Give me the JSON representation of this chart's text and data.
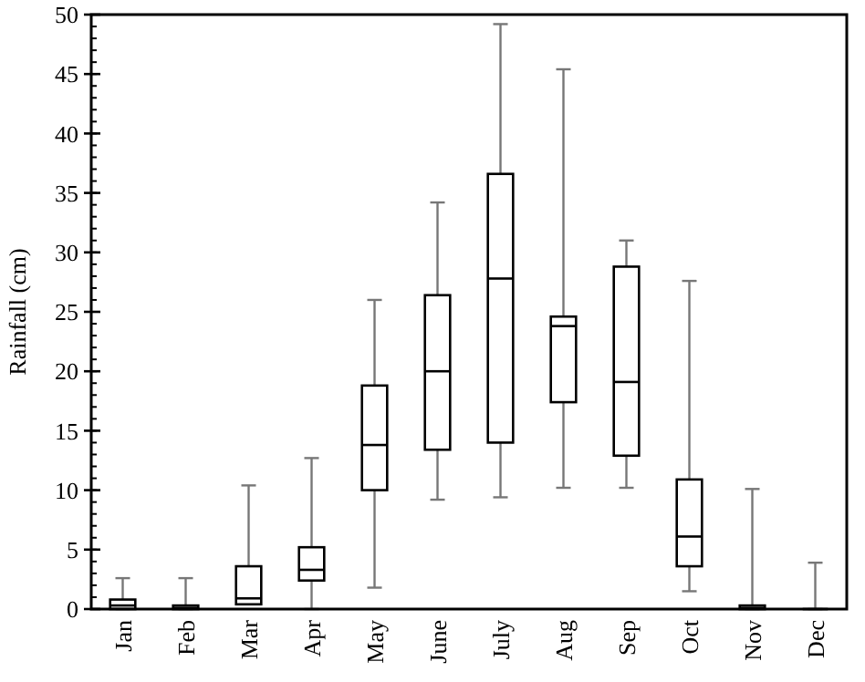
{
  "chart_data": {
    "type": "box",
    "ylabel": "Rainfall (cm)",
    "categories": [
      "Jan",
      "Feb",
      "Mar",
      "Apr",
      "May",
      "June",
      "July",
      "Aug",
      "Sep",
      "Oct",
      "Nov",
      "Dec"
    ],
    "boxes": [
      {
        "low": 0,
        "q1": 0,
        "median": 0.3,
        "q3": 0.8,
        "high": 2.6
      },
      {
        "low": 0,
        "q1": 0,
        "median": 0.1,
        "q3": 0.3,
        "high": 2.6
      },
      {
        "low": 0.4,
        "q1": 0.4,
        "median": 0.9,
        "q3": 3.6,
        "high": 10.4
      },
      {
        "low": 0,
        "q1": 2.4,
        "median": 3.3,
        "q3": 5.2,
        "high": 12.7
      },
      {
        "low": 1.8,
        "q1": 10,
        "median": 13.8,
        "q3": 18.8,
        "high": 26
      },
      {
        "low": 9.2,
        "q1": 13.4,
        "median": 20,
        "q3": 26.4,
        "high": 34.2
      },
      {
        "low": 9.4,
        "q1": 14,
        "median": 27.8,
        "q3": 36.6,
        "high": 49.2
      },
      {
        "low": 10.2,
        "q1": 17.4,
        "median": 23.8,
        "q3": 24.6,
        "high": 45.4
      },
      {
        "low": 10.2,
        "q1": 12.9,
        "median": 19.1,
        "q3": 28.8,
        "high": 31
      },
      {
        "low": 1.5,
        "q1": 3.6,
        "median": 6.1,
        "q3": 10.9,
        "high": 27.6
      },
      {
        "low": 0,
        "q1": 0,
        "median": 0.1,
        "q3": 0.3,
        "high": 10.1
      },
      {
        "low": 0,
        "q1": 0,
        "median": 0,
        "q3": 0,
        "high": 3.9
      }
    ],
    "ylim": [
      0,
      50
    ],
    "yticks": [
      0,
      5,
      10,
      15,
      20,
      25,
      30,
      35,
      40,
      45,
      50
    ],
    "grid": false
  }
}
